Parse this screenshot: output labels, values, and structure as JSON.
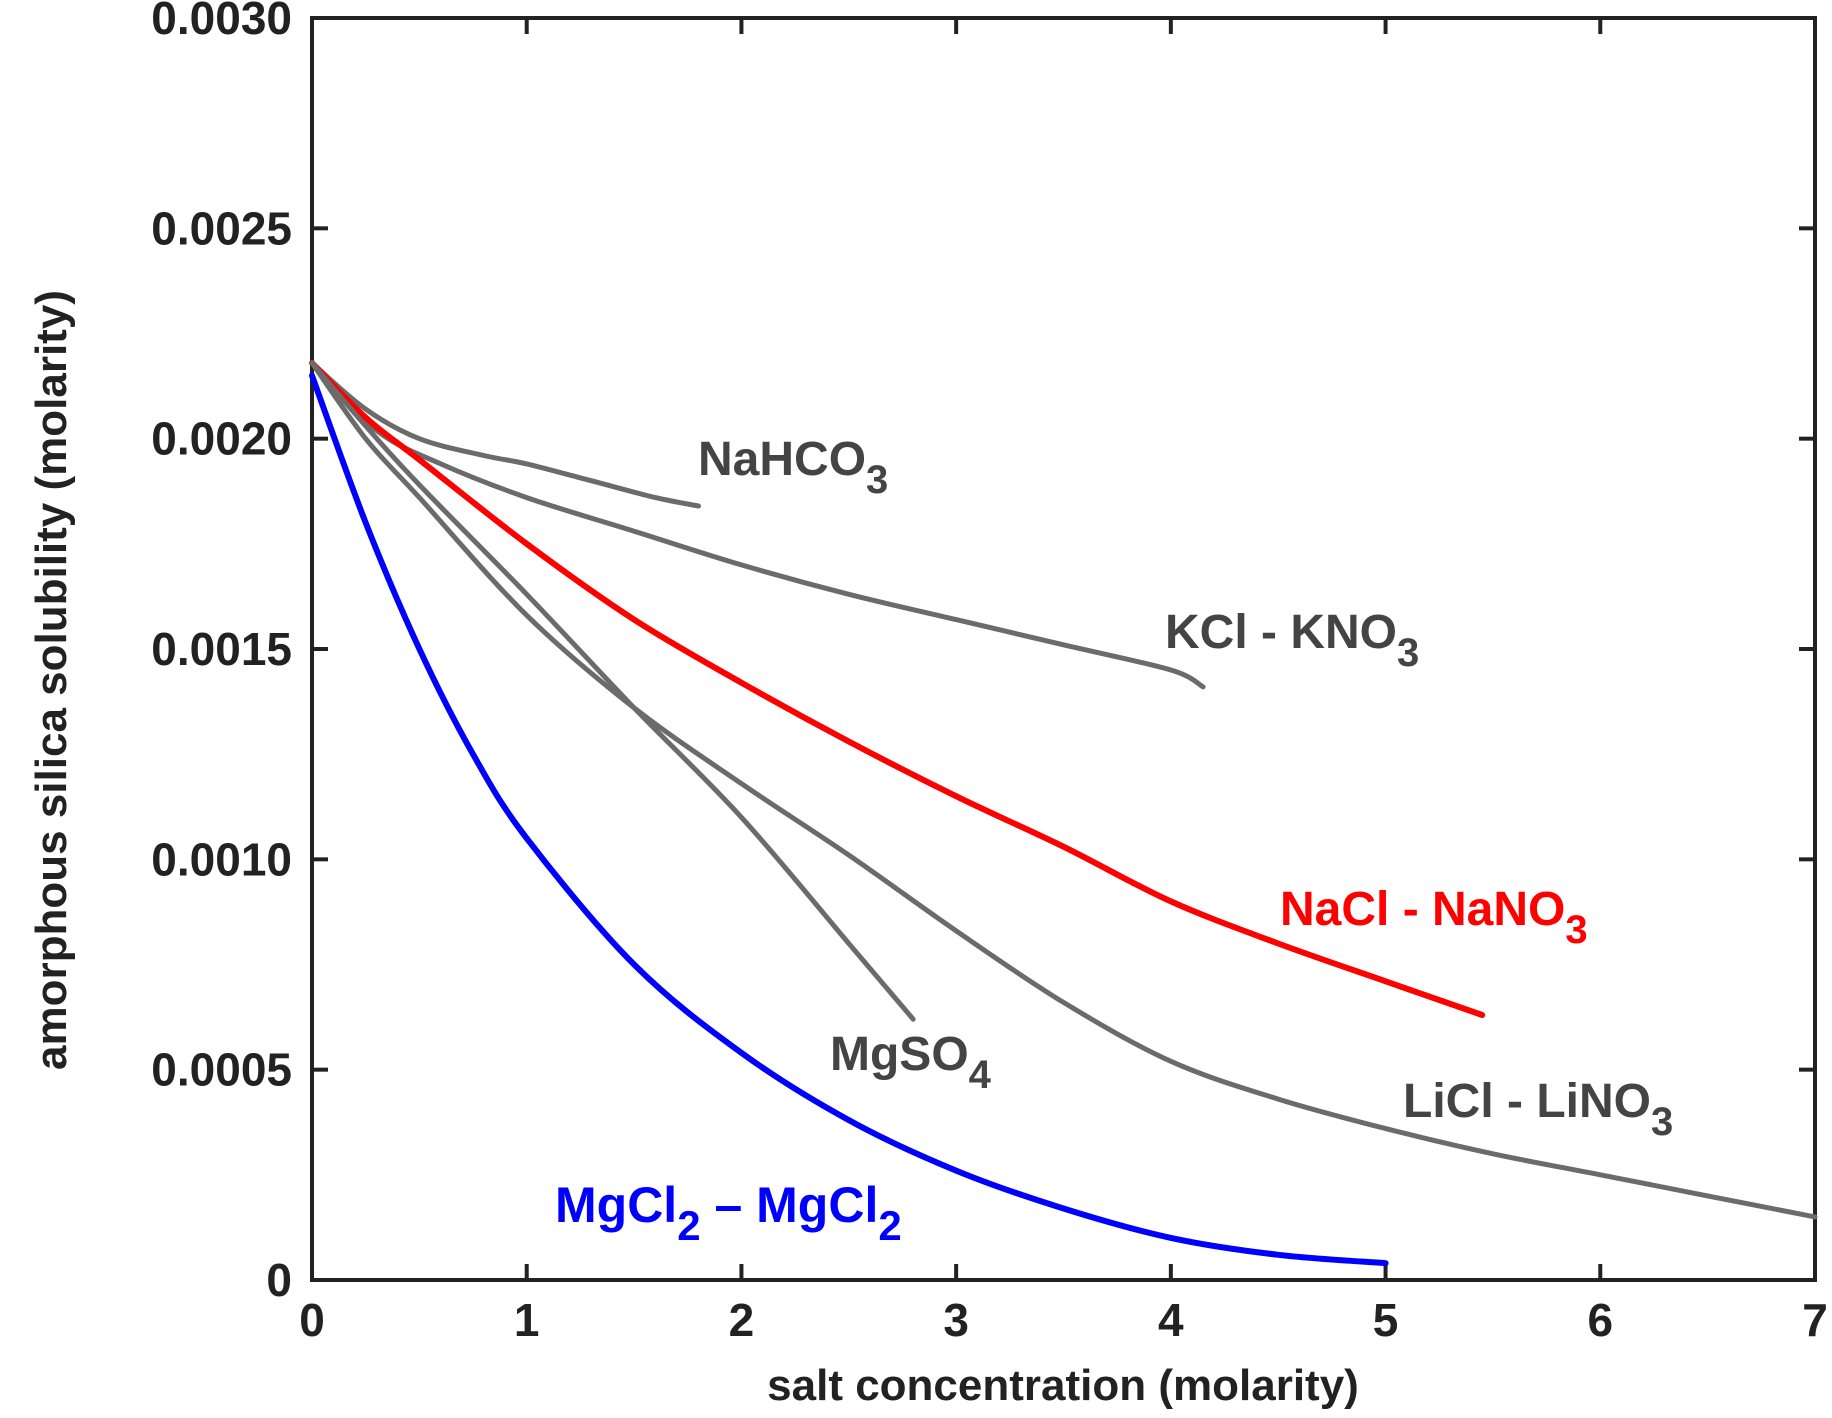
{
  "chart_data": {
    "type": "line",
    "title": "",
    "xlabel": "salt concentration (molarity)",
    "ylabel": "amorphous silica solubility (molarity)",
    "xlim": [
      0,
      7
    ],
    "ylim": [
      0,
      0.003
    ],
    "xticks": [
      "0",
      "1",
      "2",
      "3",
      "4",
      "5",
      "6",
      "7"
    ],
    "yticks": [
      "0",
      "0.0005",
      "0.0010",
      "0.0015",
      "0.0020",
      "0.0025",
      "0.0030"
    ],
    "grid": false,
    "legend": "none",
    "series": [
      {
        "name": "NaHCO3",
        "label": {
          "main": "NaHCO",
          "sub": "3"
        },
        "color": "#6b6b6b",
        "x": [
          0,
          0.25,
          0.5,
          0.8,
          1.0,
          1.3,
          1.6,
          1.8
        ],
        "y": [
          0.00218,
          0.00207,
          0.002,
          0.00196,
          0.00194,
          0.0019,
          0.00186,
          0.00184
        ]
      },
      {
        "name": "KCl - KNO3",
        "label": {
          "main": "KCl - KNO",
          "sub": "3"
        },
        "color": "#6b6b6b",
        "x": [
          0,
          0.3,
          0.6,
          1.0,
          1.5,
          2.0,
          2.5,
          3.0,
          3.5,
          4.0,
          4.15
        ],
        "y": [
          0.00218,
          0.00202,
          0.00194,
          0.00186,
          0.00178,
          0.0017,
          0.00163,
          0.00157,
          0.00151,
          0.00145,
          0.00141
        ]
      },
      {
        "name": "NaCl - NaNO3",
        "label": {
          "main": "NaCl - NaNO",
          "sub": "3"
        },
        "color": "#ff0000",
        "x": [
          0,
          0.25,
          0.5,
          1.0,
          1.5,
          2.0,
          2.5,
          3.0,
          3.5,
          4.0,
          4.5,
          5.0,
          5.45
        ],
        "y": [
          0.00218,
          0.00205,
          0.00195,
          0.00175,
          0.00157,
          0.00142,
          0.00128,
          0.00115,
          0.00103,
          0.0009,
          0.0008,
          0.00071,
          0.00063
        ]
      },
      {
        "name": "MgSO4",
        "label": {
          "main": "MgSO",
          "sub": "4"
        },
        "color": "#6b6b6b",
        "x": [
          0,
          0.25,
          0.5,
          1.0,
          1.5,
          2.0,
          2.5,
          2.8
        ],
        "y": [
          0.00218,
          0.00203,
          0.00189,
          0.00163,
          0.00136,
          0.0011,
          0.0008,
          0.00062
        ]
      },
      {
        "name": "LiCl - LiNO3",
        "label": {
          "main": "LiCl - LiNO",
          "sub": "3"
        },
        "color": "#6b6b6b",
        "x": [
          0,
          0.25,
          0.5,
          1.0,
          1.5,
          2.0,
          2.5,
          3.0,
          3.5,
          4.0,
          4.5,
          5.0,
          5.5,
          6.0,
          6.5,
          7.0
        ],
        "y": [
          0.00218,
          0.002,
          0.00186,
          0.00158,
          0.00136,
          0.00118,
          0.00101,
          0.00083,
          0.00066,
          0.00052,
          0.00043,
          0.00036,
          0.0003,
          0.00025,
          0.0002,
          0.00015
        ]
      },
      {
        "name": "MgCl2 – MgCl2",
        "label": {
          "main1": "MgCl",
          "sub1": "2",
          "mid": " – MgCl",
          "sub2": "2"
        },
        "color": "#0000ff",
        "x": [
          0,
          0.25,
          0.5,
          0.75,
          1.0,
          1.5,
          2.0,
          2.5,
          3.0,
          3.5,
          4.0,
          4.5,
          5.0
        ],
        "y": [
          0.00215,
          0.0018,
          0.0015,
          0.00125,
          0.00105,
          0.00075,
          0.00054,
          0.00038,
          0.00026,
          0.00017,
          0.0001,
          6e-05,
          4e-05
        ]
      }
    ]
  }
}
